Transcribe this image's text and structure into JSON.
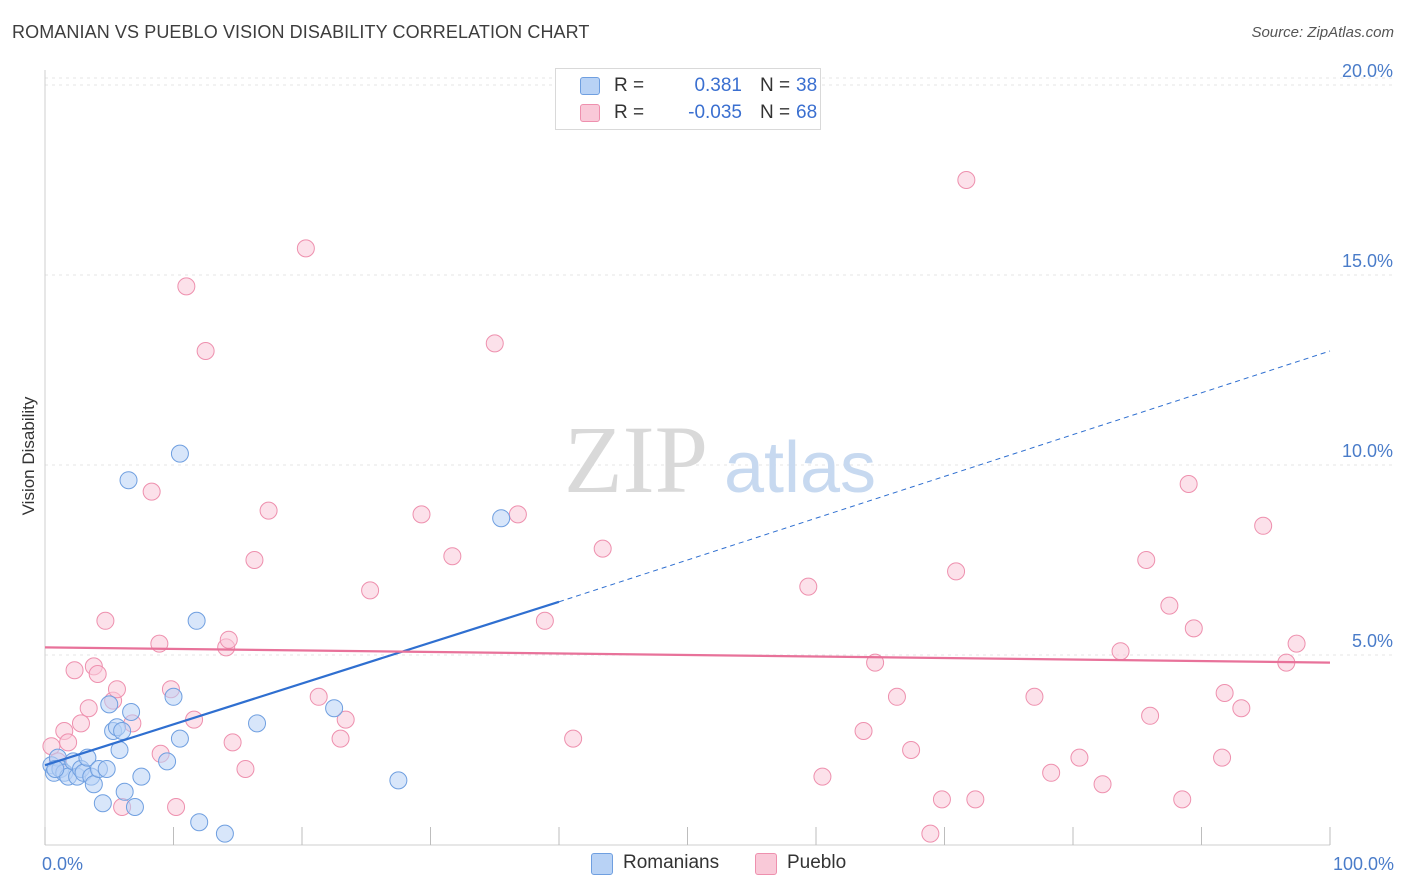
{
  "title": "ROMANIAN VS PUEBLO VISION DISABILITY CORRELATION CHART",
  "source": "Source: ZipAtlas.com",
  "watermark": {
    "zip": "ZIP",
    "atlas": "atlas"
  },
  "legend": {
    "rows": [
      {
        "r_label": "R =",
        "r_value": "0.381",
        "n_label": "N =",
        "n_value": "38"
      },
      {
        "r_label": "R =",
        "r_value": "-0.035",
        "n_label": "N =",
        "n_value": "68"
      }
    ]
  },
  "bottom_legend": {
    "romanians": "Romanians",
    "pueblo": "Pueblo"
  },
  "colors": {
    "romanians_fill": "#b8d2f5",
    "romanians_stroke": "#6f9fe0",
    "romanians_line": "#2f6fd0",
    "pueblo_fill": "#f9c9d8",
    "pueblo_stroke": "#ee90ae",
    "pueblo_line": "#e8729a",
    "tick_text": "#4a7cc9",
    "grid": "#e4e4e4"
  },
  "chart_data": {
    "type": "scatter",
    "title": "ROMANIAN VS PUEBLO VISION DISABILITY CORRELATION CHART",
    "xlabel": "",
    "ylabel": "Vision Disability",
    "xlim": [
      0,
      100
    ],
    "ylim": [
      0,
      21
    ],
    "y_ticks": [
      {
        "value": 5,
        "label": "5.0%"
      },
      {
        "value": 10,
        "label": "10.0%"
      },
      {
        "value": 15,
        "label": "15.0%"
      },
      {
        "value": 20,
        "label": "20.0%"
      }
    ],
    "x_tick_labels": [
      {
        "value": 0,
        "label": "0.0%"
      },
      {
        "value": 100,
        "label": "100.0%"
      }
    ],
    "x_minor_ticks": [
      0,
      10,
      20,
      30,
      40,
      50,
      60,
      70,
      80,
      90,
      100
    ],
    "series": [
      {
        "name": "Romanians",
        "r": 0.381,
        "n": 38,
        "trend": {
          "x0": 0,
          "y0": 2.1,
          "x1": 40,
          "y1": 6.4,
          "dash_to_x": 100,
          "dash_to_y": 13.0
        },
        "points": [
          [
            0.5,
            2.1
          ],
          [
            0.7,
            1.9
          ],
          [
            1.0,
            2.3
          ],
          [
            1.2,
            2.0
          ],
          [
            1.5,
            1.9
          ],
          [
            1.8,
            1.8
          ],
          [
            2.2,
            2.2
          ],
          [
            2.5,
            1.8
          ],
          [
            2.8,
            2.0
          ],
          [
            3.0,
            1.9
          ],
          [
            3.3,
            2.3
          ],
          [
            3.6,
            1.8
          ],
          [
            3.8,
            1.6
          ],
          [
            4.2,
            2.0
          ],
          [
            4.5,
            1.1
          ],
          [
            4.8,
            2.0
          ],
          [
            5.0,
            3.7
          ],
          [
            5.3,
            3.0
          ],
          [
            5.6,
            3.1
          ],
          [
            5.8,
            2.5
          ],
          [
            6.0,
            3.0
          ],
          [
            6.2,
            1.4
          ],
          [
            6.5,
            9.6
          ],
          [
            6.7,
            3.5
          ],
          [
            7.0,
            1.0
          ],
          [
            7.5,
            1.8
          ],
          [
            9.5,
            2.2
          ],
          [
            10.0,
            3.9
          ],
          [
            10.5,
            2.8
          ],
          [
            10.5,
            10.3
          ],
          [
            11.8,
            5.9
          ],
          [
            12.0,
            0.6
          ],
          [
            14.0,
            0.3
          ],
          [
            16.5,
            3.2
          ],
          [
            22.5,
            3.6
          ],
          [
            27.5,
            1.7
          ],
          [
            35.5,
            8.6
          ],
          [
            0.8,
            2.0
          ]
        ]
      },
      {
        "name": "Pueblo",
        "r": -0.035,
        "n": 68,
        "trend": {
          "x0": 0,
          "y0": 5.2,
          "x1": 100,
          "y1": 4.8
        },
        "points": [
          [
            0.5,
            2.6
          ],
          [
            1.0,
            2.2
          ],
          [
            1.5,
            3.0
          ],
          [
            1.8,
            2.7
          ],
          [
            2.3,
            4.6
          ],
          [
            2.8,
            3.2
          ],
          [
            3.4,
            3.6
          ],
          [
            3.8,
            4.7
          ],
          [
            4.1,
            4.5
          ],
          [
            4.7,
            5.9
          ],
          [
            5.3,
            3.8
          ],
          [
            5.6,
            4.1
          ],
          [
            6.0,
            1.0
          ],
          [
            6.8,
            3.2
          ],
          [
            8.3,
            9.3
          ],
          [
            8.9,
            5.3
          ],
          [
            9.0,
            2.4
          ],
          [
            9.8,
            4.1
          ],
          [
            10.2,
            1.0
          ],
          [
            11.0,
            14.7
          ],
          [
            11.6,
            3.3
          ],
          [
            12.5,
            13.0
          ],
          [
            14.1,
            5.2
          ],
          [
            14.3,
            5.4
          ],
          [
            14.6,
            2.7
          ],
          [
            15.6,
            2.0
          ],
          [
            16.3,
            7.5
          ],
          [
            17.4,
            8.8
          ],
          [
            20.3,
            15.7
          ],
          [
            21.3,
            3.9
          ],
          [
            23.0,
            2.8
          ],
          [
            23.4,
            3.3
          ],
          [
            25.3,
            6.7
          ],
          [
            29.3,
            8.7
          ],
          [
            31.7,
            7.6
          ],
          [
            35.0,
            13.2
          ],
          [
            36.8,
            8.7
          ],
          [
            38.9,
            5.9
          ],
          [
            41.1,
            2.8
          ],
          [
            43.4,
            7.8
          ],
          [
            59.4,
            6.8
          ],
          [
            60.5,
            1.8
          ],
          [
            63.7,
            3.0
          ],
          [
            64.6,
            4.8
          ],
          [
            66.3,
            3.9
          ],
          [
            67.4,
            2.5
          ],
          [
            68.9,
            0.3
          ],
          [
            69.8,
            1.2
          ],
          [
            70.9,
            7.2
          ],
          [
            71.7,
            17.5
          ],
          [
            72.4,
            1.2
          ],
          [
            77.0,
            3.9
          ],
          [
            78.3,
            1.9
          ],
          [
            80.5,
            2.3
          ],
          [
            82.3,
            1.6
          ],
          [
            83.7,
            5.1
          ],
          [
            85.7,
            7.5
          ],
          [
            86.0,
            3.4
          ],
          [
            87.5,
            6.3
          ],
          [
            88.5,
            1.2
          ],
          [
            89.4,
            5.7
          ],
          [
            89.0,
            9.5
          ],
          [
            91.6,
            2.3
          ],
          [
            91.8,
            4.0
          ],
          [
            93.1,
            3.6
          ],
          [
            94.8,
            8.4
          ],
          [
            96.6,
            4.8
          ],
          [
            97.4,
            5.3
          ]
        ]
      }
    ]
  }
}
